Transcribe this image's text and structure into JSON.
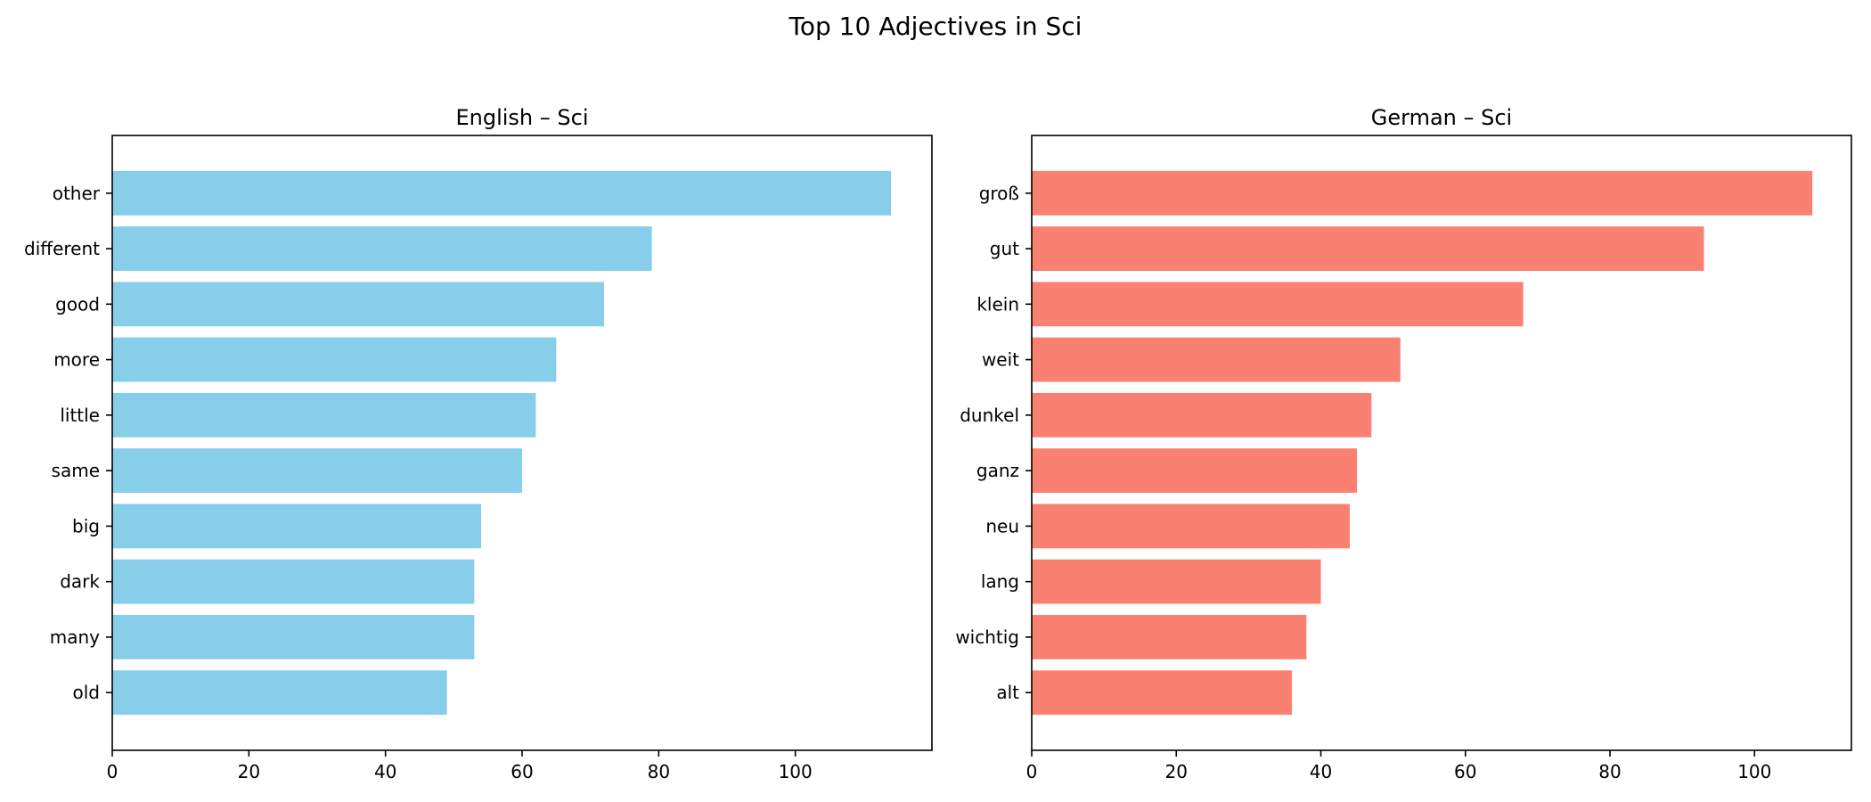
{
  "figure": {
    "title": "Top 10 Adjectives in Sci"
  },
  "chart_data": [
    {
      "type": "bar",
      "orientation": "horizontal",
      "title": "English – Sci",
      "xlabel": "",
      "ylabel": "",
      "categories": [
        "other",
        "different",
        "good",
        "more",
        "little",
        "same",
        "big",
        "dark",
        "many",
        "old"
      ],
      "values": [
        114,
        79,
        72,
        65,
        62,
        60,
        54,
        53,
        53,
        49
      ],
      "xlim": [
        0,
        120
      ],
      "xticks": [
        0,
        20,
        40,
        60,
        80,
        100
      ],
      "color": "#87CEEB",
      "grid": false
    },
    {
      "type": "bar",
      "orientation": "horizontal",
      "title": "German – Sci",
      "xlabel": "",
      "ylabel": "",
      "categories": [
        "groß",
        "gut",
        "klein",
        "weit",
        "dunkel",
        "ganz",
        "neu",
        "lang",
        "wichtig",
        "alt"
      ],
      "values": [
        108,
        93,
        68,
        51,
        47,
        45,
        44,
        40,
        38,
        36
      ],
      "xlim": [
        0,
        113.4
      ],
      "xticks": [
        0,
        20,
        40,
        60,
        80,
        100
      ],
      "color": "#FA8072",
      "grid": false
    }
  ]
}
